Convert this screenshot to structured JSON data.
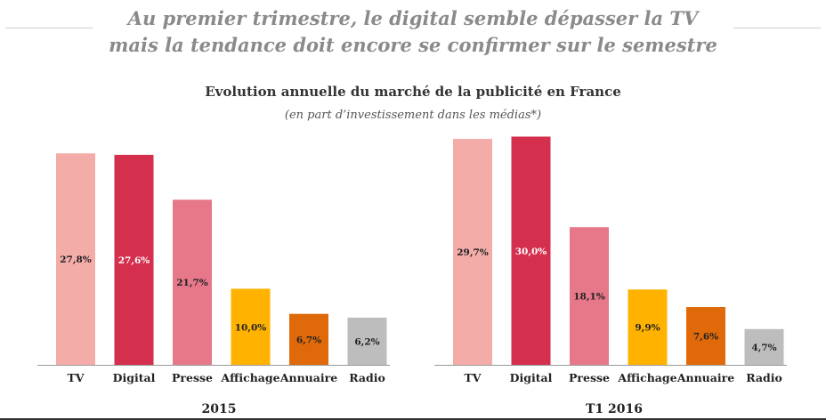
{
  "header": {
    "line1": "Au premier trimestre, le digital semble dépasser la TV",
    "line2": "mais la tendance doit encore se confirmer sur le semestre"
  },
  "chart": {
    "title": "Evolution annuelle du marché de la publicité en France",
    "subtitle": "(en part d’investissement dans les médias*)"
  },
  "chart_data": [
    {
      "type": "bar",
      "period": "2015",
      "categories": [
        "TV",
        "Digital",
        "Presse",
        "Affichage",
        "Annuaire",
        "Radio"
      ],
      "values": [
        27.8,
        27.6,
        21.7,
        10.0,
        6.7,
        6.2
      ],
      "value_labels": [
        "27,8%",
        "27,6%",
        "21,7%",
        "10,0%",
        "6,7%",
        "6,2%"
      ],
      "colors": [
        "#f4aca8",
        "#d42f4d",
        "#e6788a",
        "#ffb300",
        "#e06a0a",
        "#bdbdbd"
      ],
      "label_colors": [
        "#222222",
        "#ffffff",
        "#222222",
        "#222222",
        "#222222",
        "#222222"
      ],
      "ylim": [
        0,
        32
      ],
      "grid": false
    },
    {
      "type": "bar",
      "period": "T1 2016",
      "categories": [
        "TV",
        "Digital",
        "Presse",
        "Affichage",
        "Annuaire",
        "Radio"
      ],
      "values": [
        29.7,
        30.0,
        18.1,
        9.9,
        7.6,
        4.7
      ],
      "value_labels": [
        "29,7%",
        "30,0%",
        "18,1%",
        "9,9%",
        "7,6%",
        "4,7%"
      ],
      "colors": [
        "#f4aca8",
        "#d42f4d",
        "#e6788a",
        "#ffb300",
        "#e06a0a",
        "#bdbdbd"
      ],
      "label_colors": [
        "#222222",
        "#ffffff",
        "#222222",
        "#222222",
        "#222222",
        "#222222"
      ],
      "ylim": [
        0,
        32
      ],
      "grid": false
    }
  ]
}
